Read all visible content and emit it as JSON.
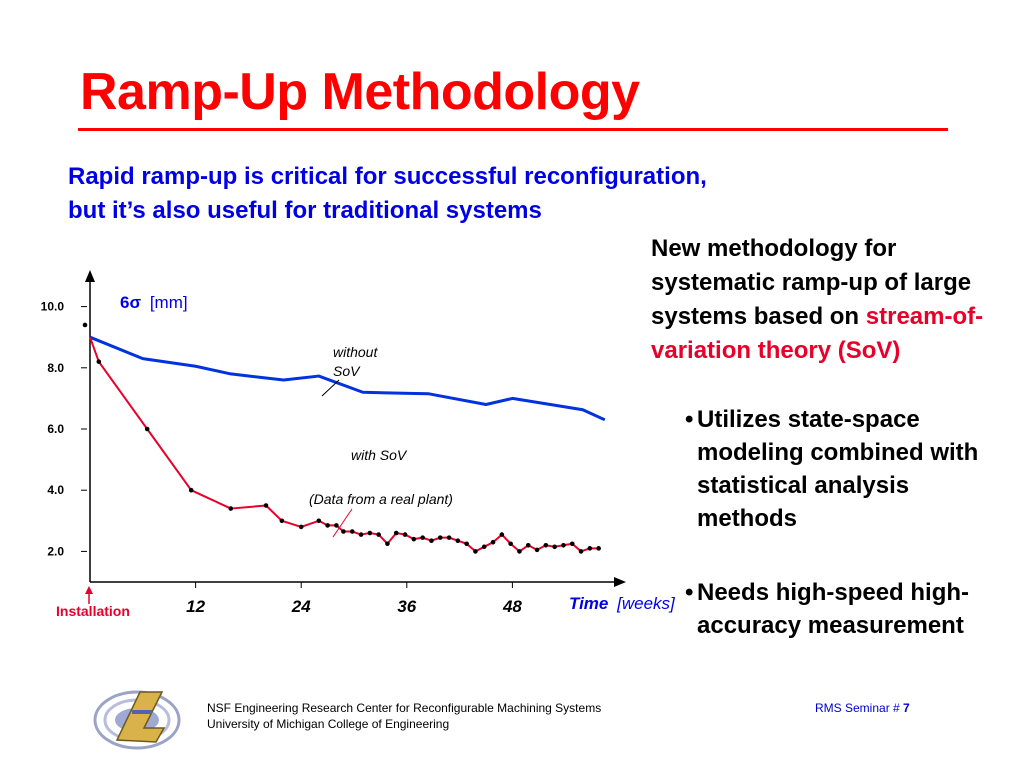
{
  "slide": {
    "title": "Ramp-Up Methodology",
    "subtitle_line1": "Rapid ramp-up is critical for successful reconfiguration,",
    "subtitle_line2": "but it’s also useful for traditional systems",
    "right_intro": "New methodology for systematic ramp-up of large systems based on",
    "right_highlight": "stream-of-variation theory (SoV)",
    "bullets": [
      "Utilizes state-space modeling combined with statistical analysis methods",
      "Needs high-speed high-accuracy measurement"
    ],
    "footer_line1": "NSF Engineering Research Center for Reconfigurable Machining Systems",
    "footer_line2": "University of Michigan College of Engineering",
    "footer_right_label": "RMS Seminar #",
    "footer_right_page": "7",
    "colors": {
      "title": "#ff0000",
      "subtitle": "#0000e6",
      "highlight": "#e8002a",
      "without_sov": "#0033dd",
      "with_sov": "#e8002a"
    }
  },
  "chart_data": {
    "type": "line",
    "ylabel_main": "6σ",
    "ylabel_unit": "[mm]",
    "xlabel_main": "Time",
    "xlabel_unit": "[weeks]",
    "origin_label": "Installation",
    "annotation": "(Data from a real plant)",
    "y_ticks": [
      {
        "value": 2,
        "label": "2.0"
      },
      {
        "value": 4,
        "label": "4.0"
      },
      {
        "value": 6,
        "label": "6.0"
      },
      {
        "value": 8,
        "label": "8.0"
      },
      {
        "value": 10,
        "label": "10.0"
      }
    ],
    "x_ticks": [
      {
        "value": 12,
        "label": "12"
      },
      {
        "value": 24,
        "label": "24"
      },
      {
        "value": 36,
        "label": "36"
      },
      {
        "value": 48,
        "label": "48"
      }
    ],
    "xlim": [
      0,
      60
    ],
    "ylim": [
      1.0,
      11.0
    ],
    "grid": false,
    "series": [
      {
        "name": "without SoV",
        "color": "#0033dd",
        "markers": false,
        "x": [
          0,
          6,
          12,
          16,
          22,
          26,
          31,
          37,
          38.5,
          45,
          48,
          56,
          58.5
        ],
        "y": [
          9.0,
          8.3,
          8.05,
          7.8,
          7.6,
          7.73,
          7.2,
          7.16,
          7.15,
          6.8,
          7.0,
          6.63,
          6.3
        ]
      },
      {
        "name": "with SoV",
        "color": "#e8002a",
        "markers": true,
        "x": [
          0,
          1,
          6.5,
          11.5,
          16,
          20,
          21.8,
          24,
          26,
          27,
          28,
          28.8,
          29.8,
          30.8,
          31.8,
          32.8,
          33.8,
          34.8,
          35.8,
          36.8,
          37.8,
          38.8,
          39.8,
          40.8,
          41.8,
          42.8,
          43.8,
          44.8,
          45.8,
          46.8,
          47.8,
          48.8,
          49.8,
          50.8,
          51.8,
          52.8,
          53.8,
          54.8,
          55.8,
          56.8,
          57.8
        ],
        "y": [
          9.0,
          8.2,
          6.0,
          4.0,
          3.4,
          3.5,
          3.0,
          2.8,
          3.0,
          2.85,
          2.85,
          2.65,
          2.65,
          2.55,
          2.6,
          2.55,
          2.25,
          2.6,
          2.55,
          2.4,
          2.45,
          2.35,
          2.45,
          2.45,
          2.35,
          2.25,
          2.0,
          2.15,
          2.3,
          2.55,
          2.25,
          2.0,
          2.2,
          2.05,
          2.2,
          2.15,
          2.2,
          2.25,
          2.0,
          2.1,
          2.1
        ]
      }
    ],
    "extra_points": [
      {
        "x": 0,
        "y": 9.4
      }
    ],
    "labels": {
      "without": [
        "without",
        "SoV"
      ],
      "with": "with SoV"
    }
  }
}
